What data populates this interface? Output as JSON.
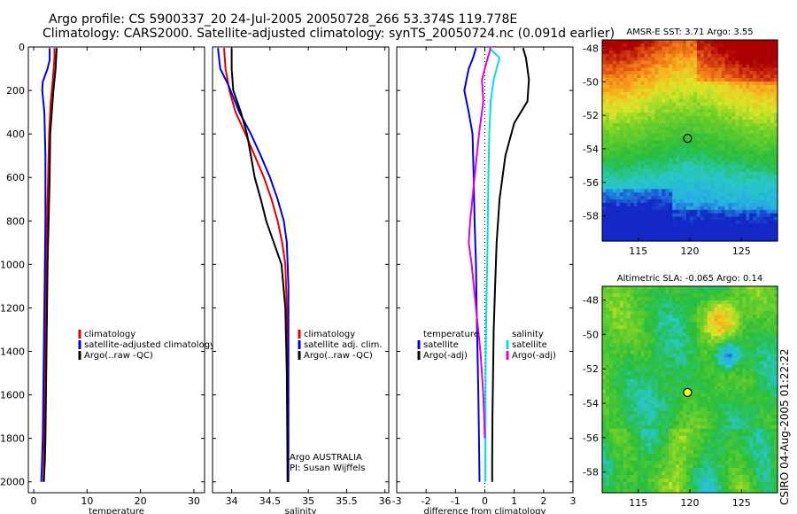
{
  "title": {
    "line1": "Argo profile: CS 5900337_20 24-Jul-2005 20050728_266 53.374S 119.778E",
    "line2": "Climatology: CARS2000. Satellite-adjusted climatology: synTS_20050724.nc (0.091d earlier)"
  },
  "side_label": "CSIRO 04-Aug-2005 01:22:22",
  "colors": {
    "climatology": "#e00000",
    "satellite": "#0000e0",
    "argo": "#000000",
    "salinity_satellite": "#00e0e0",
    "salinity_argo": "#e000e0"
  },
  "chart_data": [
    {
      "type": "line",
      "name": "temperature-panel",
      "xlabel": "temperature",
      "xlim": [
        -1,
        32
      ],
      "xticks": [
        0,
        10,
        20,
        30
      ],
      "ylim": [
        2050,
        0
      ],
      "yticks": [
        0,
        200,
        400,
        600,
        800,
        1000,
        1200,
        1400,
        1600,
        1800,
        2000
      ],
      "legend": {
        "placement": "right",
        "entries": [
          "climatology",
          "satellite-adjusted climatology",
          "Argo(..raw -QC)"
        ]
      },
      "series": [
        {
          "name": "climatology",
          "color": "#e00000",
          "x": [
            3.9,
            3.9,
            3.6,
            3.2,
            2.9,
            2.7,
            2.5,
            2.4,
            2.3,
            2.2,
            2.1,
            2.0,
            1.9,
            1.8
          ],
          "y": [
            5,
            50,
            150,
            250,
            400,
            600,
            800,
            1000,
            1200,
            1400,
            1600,
            1800,
            1950,
            2000
          ]
        },
        {
          "name": "satellite-adjusted climatology",
          "color": "#0000e0",
          "x": [
            3.0,
            3.0,
            2.6,
            1.7,
            1.6,
            2.0,
            2.2,
            2.2,
            2.1,
            2.0,
            1.9,
            1.8,
            1.7,
            1.5,
            1.4
          ],
          "y": [
            5,
            60,
            100,
            160,
            200,
            300,
            500,
            800,
            1000,
            1200,
            1400,
            1600,
            1800,
            1950,
            2000
          ]
        },
        {
          "name": "Argo(..raw -QC)",
          "color": "#000000",
          "x": [
            4.3,
            4.1,
            3.7,
            3.4,
            3.1,
            3.0,
            2.8,
            2.6,
            2.5,
            2.4,
            2.3,
            2.2,
            2.1,
            2.0,
            1.9
          ],
          "y": [
            5,
            100,
            200,
            300,
            400,
            600,
            800,
            1000,
            1200,
            1400,
            1600,
            1800,
            1900,
            1950,
            2000
          ]
        }
      ]
    },
    {
      "type": "line",
      "name": "salinity-panel",
      "xlabel": "salinity",
      "xlim": [
        33.75,
        36.05
      ],
      "xticks": [
        34,
        34.5,
        35,
        35.5,
        36
      ],
      "ylim": [
        2050,
        0
      ],
      "legend": {
        "placement": "right",
        "entries": [
          "climatology",
          "satellite adj. clim.",
          "Argo(..raw -QC)"
        ]
      },
      "annotation": [
        "Argo AUSTRALIA",
        "PI: Susan Wijffels"
      ],
      "series": [
        {
          "name": "climatology",
          "color": "#e00000",
          "x": [
            33.9,
            33.92,
            33.97,
            34.05,
            34.18,
            34.3,
            34.42,
            34.52,
            34.6,
            34.66,
            34.7,
            34.72,
            34.73,
            34.73
          ],
          "y": [
            5,
            100,
            200,
            300,
            400,
            500,
            600,
            700,
            800,
            900,
            1000,
            1200,
            1500,
            2000
          ]
        },
        {
          "name": "satellite adj. clim.",
          "color": "#0000e0",
          "x": [
            33.82,
            33.85,
            33.95,
            34.1,
            34.25,
            34.38,
            34.5,
            34.6,
            34.68,
            34.72,
            34.74,
            34.74,
            34.74
          ],
          "y": [
            5,
            100,
            170,
            300,
            400,
            500,
            600,
            700,
            800,
            900,
            1100,
            1500,
            2000
          ]
        },
        {
          "name": "Argo(..raw -QC)",
          "color": "#000000",
          "x": [
            34.0,
            34.0,
            34.02,
            34.12,
            34.2,
            34.25,
            34.3,
            34.38,
            34.45,
            34.55,
            34.65,
            34.7,
            34.72,
            34.73
          ],
          "y": [
            5,
            100,
            200,
            300,
            400,
            500,
            600,
            700,
            800,
            900,
            1000,
            1200,
            1500,
            2000
          ]
        }
      ]
    },
    {
      "type": "line",
      "name": "difference-panel",
      "xlabel": "difference from climatology",
      "xlim": [
        -3,
        3
      ],
      "xticks": [
        -3,
        -2,
        -1,
        0,
        1,
        2,
        3
      ],
      "ylim": [
        2050,
        0
      ],
      "legend": {
        "placement": "right",
        "entries": [
          "temperature",
          "satellite",
          "Argo(-adj)",
          "salinity",
          "satellite",
          "Argo(-adj)"
        ]
      },
      "series": [
        {
          "name": "temperature satellite",
          "color": "#0000e0",
          "x": [
            -0.3,
            -0.4,
            -0.55,
            -0.7,
            -0.55,
            -0.42,
            -0.38,
            -0.35,
            -0.3,
            -0.28,
            -0.25,
            -0.22,
            -0.2,
            -0.18
          ],
          "y": [
            5,
            50,
            100,
            200,
            300,
            400,
            600,
            800,
            1000,
            1200,
            1400,
            1600,
            1800,
            2000
          ]
        },
        {
          "name": "temperature Argo(-adj)",
          "color": "#000000",
          "x": [
            1.3,
            1.4,
            1.5,
            1.45,
            1.0,
            0.7,
            0.5,
            0.4,
            0.35,
            0.3,
            0.28,
            0.26,
            0.25,
            0.25
          ],
          "y": [
            5,
            50,
            150,
            250,
            350,
            500,
            700,
            900,
            1100,
            1300,
            1500,
            1700,
            1900,
            2000
          ]
        },
        {
          "name": "salinity satellite",
          "color": "#00e0e0",
          "x": [
            0.15,
            0.5,
            0.3,
            0.2,
            0.15,
            0.12,
            0.1,
            0.08,
            0.05,
            0.03,
            0.02,
            0.02
          ],
          "y": [
            5,
            50,
            150,
            250,
            400,
            600,
            800,
            1000,
            1200,
            1400,
            1700,
            2000
          ]
        },
        {
          "name": "salinity Argo(-adj)",
          "color": "#e000e0",
          "x": [
            0.2,
            0.1,
            -0.1,
            -0.05,
            -0.2,
            -0.35,
            -0.5,
            -0.55,
            -0.45,
            -0.3,
            -0.15,
            -0.05,
            0.0
          ],
          "y": [
            5,
            50,
            150,
            250,
            400,
            600,
            800,
            900,
            1000,
            1200,
            1400,
            1600,
            1800
          ]
        }
      ]
    },
    {
      "type": "heatmap",
      "name": "sst-map",
      "title": "AMSR-E SST: 3.71 Argo: 3.55",
      "xlim": [
        111.5,
        128.5
      ],
      "xticks": [
        115,
        120,
        125
      ],
      "ylim": [
        -59.5,
        -47.5
      ],
      "yticks": [
        -48,
        -50,
        -52,
        -54,
        -56,
        -58
      ],
      "marker": {
        "x": 119.778,
        "y": -53.374,
        "fill": "#ffffff00"
      }
    },
    {
      "type": "heatmap",
      "name": "sla-map",
      "title": "Altimetric SLA: -0.065 Argo: 0.14",
      "xlim": [
        111.5,
        128.5
      ],
      "xticks": [
        115,
        120,
        125
      ],
      "ylim": [
        -59.2,
        -47.2
      ],
      "yticks": [
        -48,
        -50,
        -52,
        -54,
        -56,
        -58
      ],
      "marker": {
        "x": 119.778,
        "y": -53.374,
        "fill": "#ffff00"
      }
    }
  ]
}
